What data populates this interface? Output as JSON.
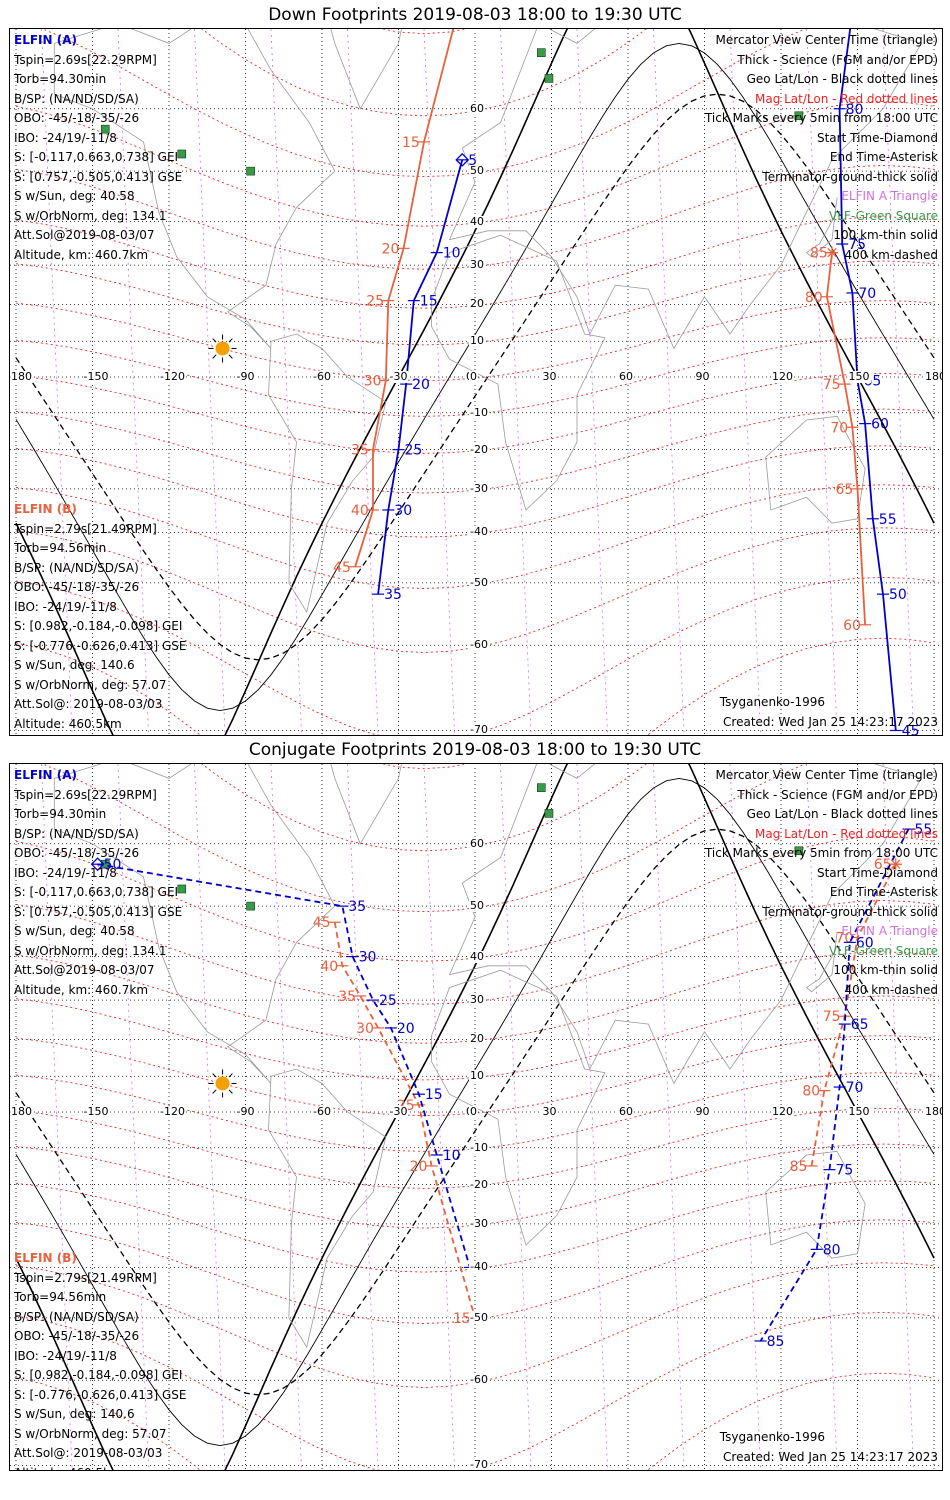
{
  "colors": {
    "elfin_a": "#0000cc",
    "elfin_b": "#e8603c",
    "mag_grid": "#ee2222",
    "geo_grid": "#000000",
    "elfin_a_alt": "#cc44cc",
    "vlf": "#3a9a4a",
    "sun": "#f5a000"
  },
  "panels": [
    {
      "title": "Down Footprints 2019-08-03 18:00 to 19:30 UTC",
      "a_tracks": [
        {
          "label": "5",
          "lon": -5,
          "lat": 52
        },
        {
          "label": "10",
          "lon": -15,
          "lat": 33
        },
        {
          "label": "15",
          "lon": -24,
          "lat": 21
        },
        {
          "label": "20",
          "lon": -27,
          "lat": -2
        },
        {
          "label": "25",
          "lon": -30,
          "lat": -20
        },
        {
          "label": "30",
          "lon": -34,
          "lat": -35
        },
        {
          "label": "35",
          "lon": -38,
          "lat": -52
        }
      ],
      "b_tracks": [
        {
          "label": "10",
          "lon": -8,
          "lat": 70
        },
        {
          "label": "15",
          "lon": -20,
          "lat": 55
        },
        {
          "label": "20",
          "lon": -28,
          "lat": 34
        },
        {
          "label": "25",
          "lon": -34,
          "lat": 21
        },
        {
          "label": "30",
          "lon": -35,
          "lat": -1
        },
        {
          "label": "35",
          "lon": -40,
          "lat": -20
        },
        {
          "label": "40",
          "lon": -40,
          "lat": -35
        },
        {
          "label": "45",
          "lon": -47,
          "lat": -47
        }
      ],
      "a_east": [
        {
          "label": "85",
          "lon": 152,
          "lat": 77
        },
        {
          "label": "80",
          "lon": 143,
          "lat": 60
        },
        {
          "label": "75",
          "lon": 144,
          "lat": 35
        },
        {
          "label": "70",
          "lon": 148,
          "lat": 23
        },
        {
          "label": "65",
          "lon": 150,
          "lat": -1
        },
        {
          "label": "60",
          "lon": 153,
          "lat": -13
        },
        {
          "label": "55",
          "lon": 156,
          "lat": -37
        },
        {
          "label": "50",
          "lon": 160,
          "lat": -52
        },
        {
          "label": "45",
          "lon": 165,
          "lat": -70
        }
      ],
      "b_east": [
        {
          "label": "85",
          "lon": 140,
          "lat": 33
        },
        {
          "label": "80",
          "lon": 138,
          "lat": 22
        },
        {
          "label": "75",
          "lon": 145,
          "lat": -2
        },
        {
          "label": "70",
          "lon": 148,
          "lat": -14
        },
        {
          "label": "65",
          "lon": 150,
          "lat": -30
        },
        {
          "label": "60",
          "lon": 153,
          "lat": -57
        }
      ]
    },
    {
      "title": "Conjugate Footprints 2019-08-03 18:00 to 19:30 UTC",
      "a_tracks": [
        {
          "label": "50",
          "lon": -148,
          "lat": 57
        },
        {
          "label": "35",
          "lon": -52,
          "lat": 50
        },
        {
          "label": "30",
          "lon": -48,
          "lat": 40
        },
        {
          "label": "25",
          "lon": -40,
          "lat": 30
        },
        {
          "label": "20",
          "lon": -33,
          "lat": 23
        },
        {
          "label": "15",
          "lon": -22,
          "lat": 5
        },
        {
          "label": "10",
          "lon": -15,
          "lat": -12
        },
        {
          "label": "5",
          "lon": -2,
          "lat": -40
        }
      ],
      "b_tracks": [
        {
          "label": "45",
          "lon": -55,
          "lat": 47
        },
        {
          "label": "40",
          "lon": -52,
          "lat": 38
        },
        {
          "label": "35",
          "lon": -45,
          "lat": 31
        },
        {
          "label": "30",
          "lon": -38,
          "lat": 23
        },
        {
          "label": "25",
          "lon": -22,
          "lat": 2
        },
        {
          "label": "20",
          "lon": -17,
          "lat": -15
        },
        {
          "label": "15",
          "lon": 0,
          "lat": -50
        }
      ],
      "a_east": [
        {
          "label": "55",
          "lon": 170,
          "lat": 62
        },
        {
          "label": "60",
          "lon": 147,
          "lat": 43
        },
        {
          "label": "65",
          "lon": 145,
          "lat": 24
        },
        {
          "label": "70",
          "lon": 143,
          "lat": 7
        },
        {
          "label": "75",
          "lon": 139,
          "lat": -16
        },
        {
          "label": "80",
          "lon": 134,
          "lat": -36
        },
        {
          "label": "85",
          "lon": 112,
          "lat": -54
        }
      ],
      "b_east": [
        {
          "label": "65",
          "lon": 165,
          "lat": 57
        },
        {
          "label": "70",
          "lon": 150,
          "lat": 44
        },
        {
          "label": "75",
          "lon": 145,
          "lat": 26
        },
        {
          "label": "80",
          "lon": 137,
          "lat": 6
        },
        {
          "label": "85",
          "lon": 132,
          "lat": -15
        }
      ]
    }
  ],
  "info_a": {
    "header": "ELFIN (A)",
    "lines": [
      "Tspin=2.69s[22.29RPM]",
      "Torb=94.30min",
      "B/SP: (NA/ND/SD/SA)",
      "OBO: -45/-18/-35/-26",
      "IBO: -24/19/-11/8",
      "S: [-0.117,0.663,0.738] GEI",
      "S: [0.757,-0.505,0.413] GSE",
      "S w/Sun, deg: 40.58",
      "S w/OrbNorm, deg: 134.1",
      "Att.Sol@2019-08-03/07",
      "Altitude, km: 460.7km"
    ]
  },
  "info_b": {
    "header": "ELFIN (B)",
    "lines": [
      "Tspin=2.79s[21.49RPM]",
      "Torb=94.56min",
      "B/SP: (NA/ND/SD/SA)",
      "OBO: -45/-18/-35/-26",
      "IBO: -24/19/-11/8",
      "S: [0.982,-0.184,-0.098] GEI",
      "S: [-0.776,-0.626,0.413] GSE",
      "S w/Sun, deg: 140.6",
      "S w/OrbNorm, deg: 57.07",
      "Att.Sol@: 2019-08-03/03",
      "Altitude: 460.5km"
    ]
  },
  "legend": {
    "l1": "Mercator View Center Time (triangle)",
    "l2": "Thick - Science (FGM and/or EPD)",
    "l3": "Geo Lat/Lon - Black dotted lines",
    "l4": "Mag Lat/Lon - Red dotted lines",
    "l5": "Tick Marks every 5min from 18:00 UTC",
    "l6": "Start Time-Diamond",
    "l7": "End Time-Asterisk",
    "l8": "Terminator-ground-thick solid",
    "l9": "ELFIN A Triangle",
    "l10": "VLF-Green Square",
    "l11": "100 km-thin solid",
    "l12": "400 km-dashed"
  },
  "model": "Tsyganenko-1996",
  "created": "Created: Wed Jan 25 14:23:17 2023",
  "lon_ticks": [
    "-180",
    "-150",
    "-120",
    "-90",
    "-60",
    "-30",
    "0",
    "30",
    "60",
    "90",
    "120",
    "150",
    "180"
  ],
  "lat_ticks": [
    "70",
    "60",
    "50",
    "40",
    "30",
    "20",
    "10",
    "0",
    "-10",
    "-20",
    "-30",
    "-40",
    "-50",
    "-60",
    "-70"
  ]
}
